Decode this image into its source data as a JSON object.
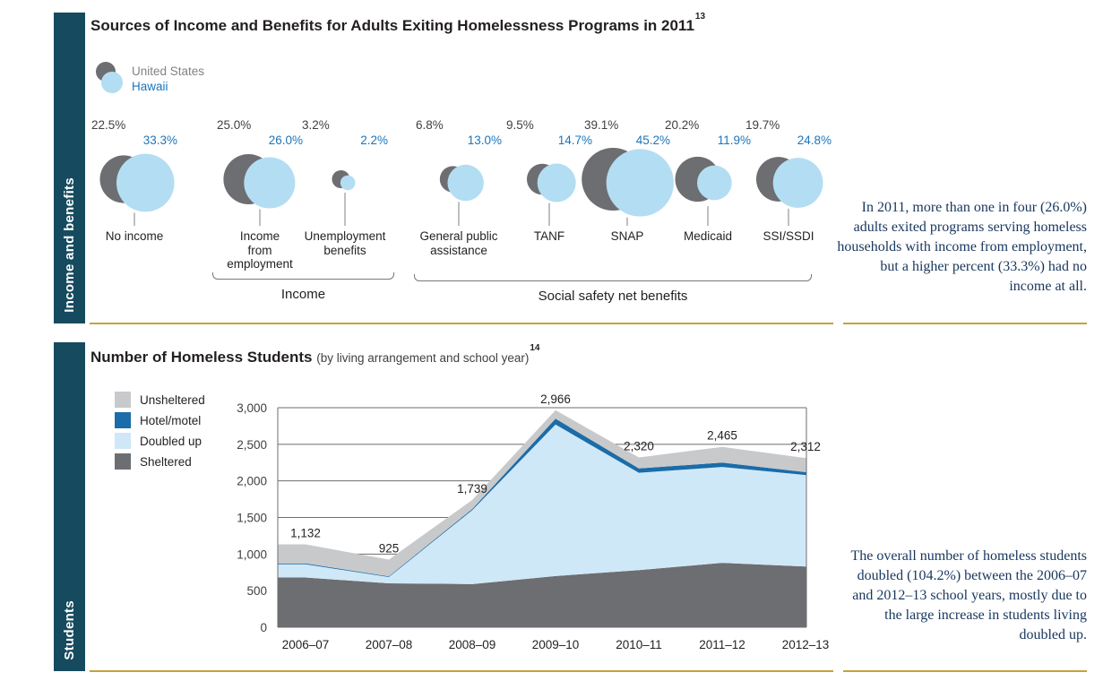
{
  "colors": {
    "sidebar": "#164a5f",
    "gold_rule": "#c6a237",
    "us_gray": "#6d6e71",
    "hawaii_blue": "#b3ddf2",
    "hawaii_text_blue": "#1b75bb",
    "annotation_navy": "#17365d"
  },
  "income_section": {
    "sidebar_label": "Income and benefits",
    "title": "Sources of Income and Benefits for Adults Exiting Homelessness Programs in 2011",
    "title_footnote": "13",
    "legend": {
      "us_label": "United States",
      "hawaii_label": "Hawaii"
    },
    "annotation": "In 2011, more than one in four (26.0%) adults exited programs serving homeless households with income from employment, but a higher percent (33.3%) had no income at all."
  },
  "students_section": {
    "sidebar_label": "Students",
    "title": "Number of Homeless Students",
    "subtitle": "(by living arrangement and school year)",
    "title_footnote": "14",
    "legend": [
      "Unsheltered",
      "Hotel/motel",
      "Doubled up",
      "Sheltered"
    ],
    "annotation": "The overall number of homeless students doubled (104.2%) between the 2006–07 and 2012–13 school years, mostly due to the large increase in students living doubled up."
  },
  "chart_data": [
    {
      "type": "bubble",
      "title": "Sources of Income and Benefits for Adults Exiting Homelessness Programs in 2011",
      "unit": "%",
      "categories": [
        "No income",
        "Income\nfrom\nemployment",
        "Unemployment\nbenefits",
        "General public\nassistance",
        "TANF",
        "SNAP",
        "Medicaid",
        "SSI/SSDI"
      ],
      "series": [
        {
          "name": "United States",
          "color": "#6d6e71",
          "values": [
            22.5,
            25.0,
            3.2,
            6.8,
            9.5,
            39.1,
            20.2,
            19.7
          ]
        },
        {
          "name": "Hawaii",
          "color": "#b3ddf2",
          "values": [
            33.3,
            26.0,
            2.2,
            13.0,
            14.7,
            45.2,
            11.9,
            24.8
          ]
        }
      ],
      "groups": [
        {
          "label": "Income",
          "from": 1,
          "to": 2
        },
        {
          "label": "Social safety net benefits",
          "from": 3,
          "to": 7
        }
      ]
    },
    {
      "type": "area",
      "stacked": true,
      "title": "Number of Homeless Students",
      "categories": [
        "2006–07",
        "2007–08",
        "2008–09",
        "2009–10",
        "2010–11",
        "2011–12",
        "2012–13"
      ],
      "series": [
        {
          "name": "Sheltered",
          "color": "#6d6e71",
          "values": [
            680,
            600,
            590,
            700,
            780,
            880,
            830
          ]
        },
        {
          "name": "Doubled up",
          "color": "#cfe8f7",
          "values": [
            180,
            85,
            1010,
            2070,
            1330,
            1310,
            1250
          ]
        },
        {
          "name": "Hotel/motel",
          "color": "#1b6ca8",
          "values": [
            12,
            10,
            15,
            80,
            60,
            60,
            40
          ]
        },
        {
          "name": "Unsheltered",
          "color": "#c8c9cb",
          "values": [
            260,
            230,
            124,
            116,
            150,
            215,
            192
          ]
        }
      ],
      "totals": [
        1132,
        925,
        1739,
        2966,
        2320,
        2465,
        2312
      ],
      "total_labels": [
        "1,132",
        "925",
        "1,739",
        "2,966",
        "2,320",
        "2,465",
        "2,312"
      ],
      "y_ticks": [
        0,
        500,
        1000,
        1500,
        2000,
        2500,
        3000
      ],
      "y_tick_labels": [
        "0",
        "500",
        "1,000",
        "1,500",
        "2,000",
        "2,500",
        "3,000"
      ],
      "ylim": [
        0,
        3000
      ],
      "grid": true,
      "legend_position": "left"
    }
  ]
}
